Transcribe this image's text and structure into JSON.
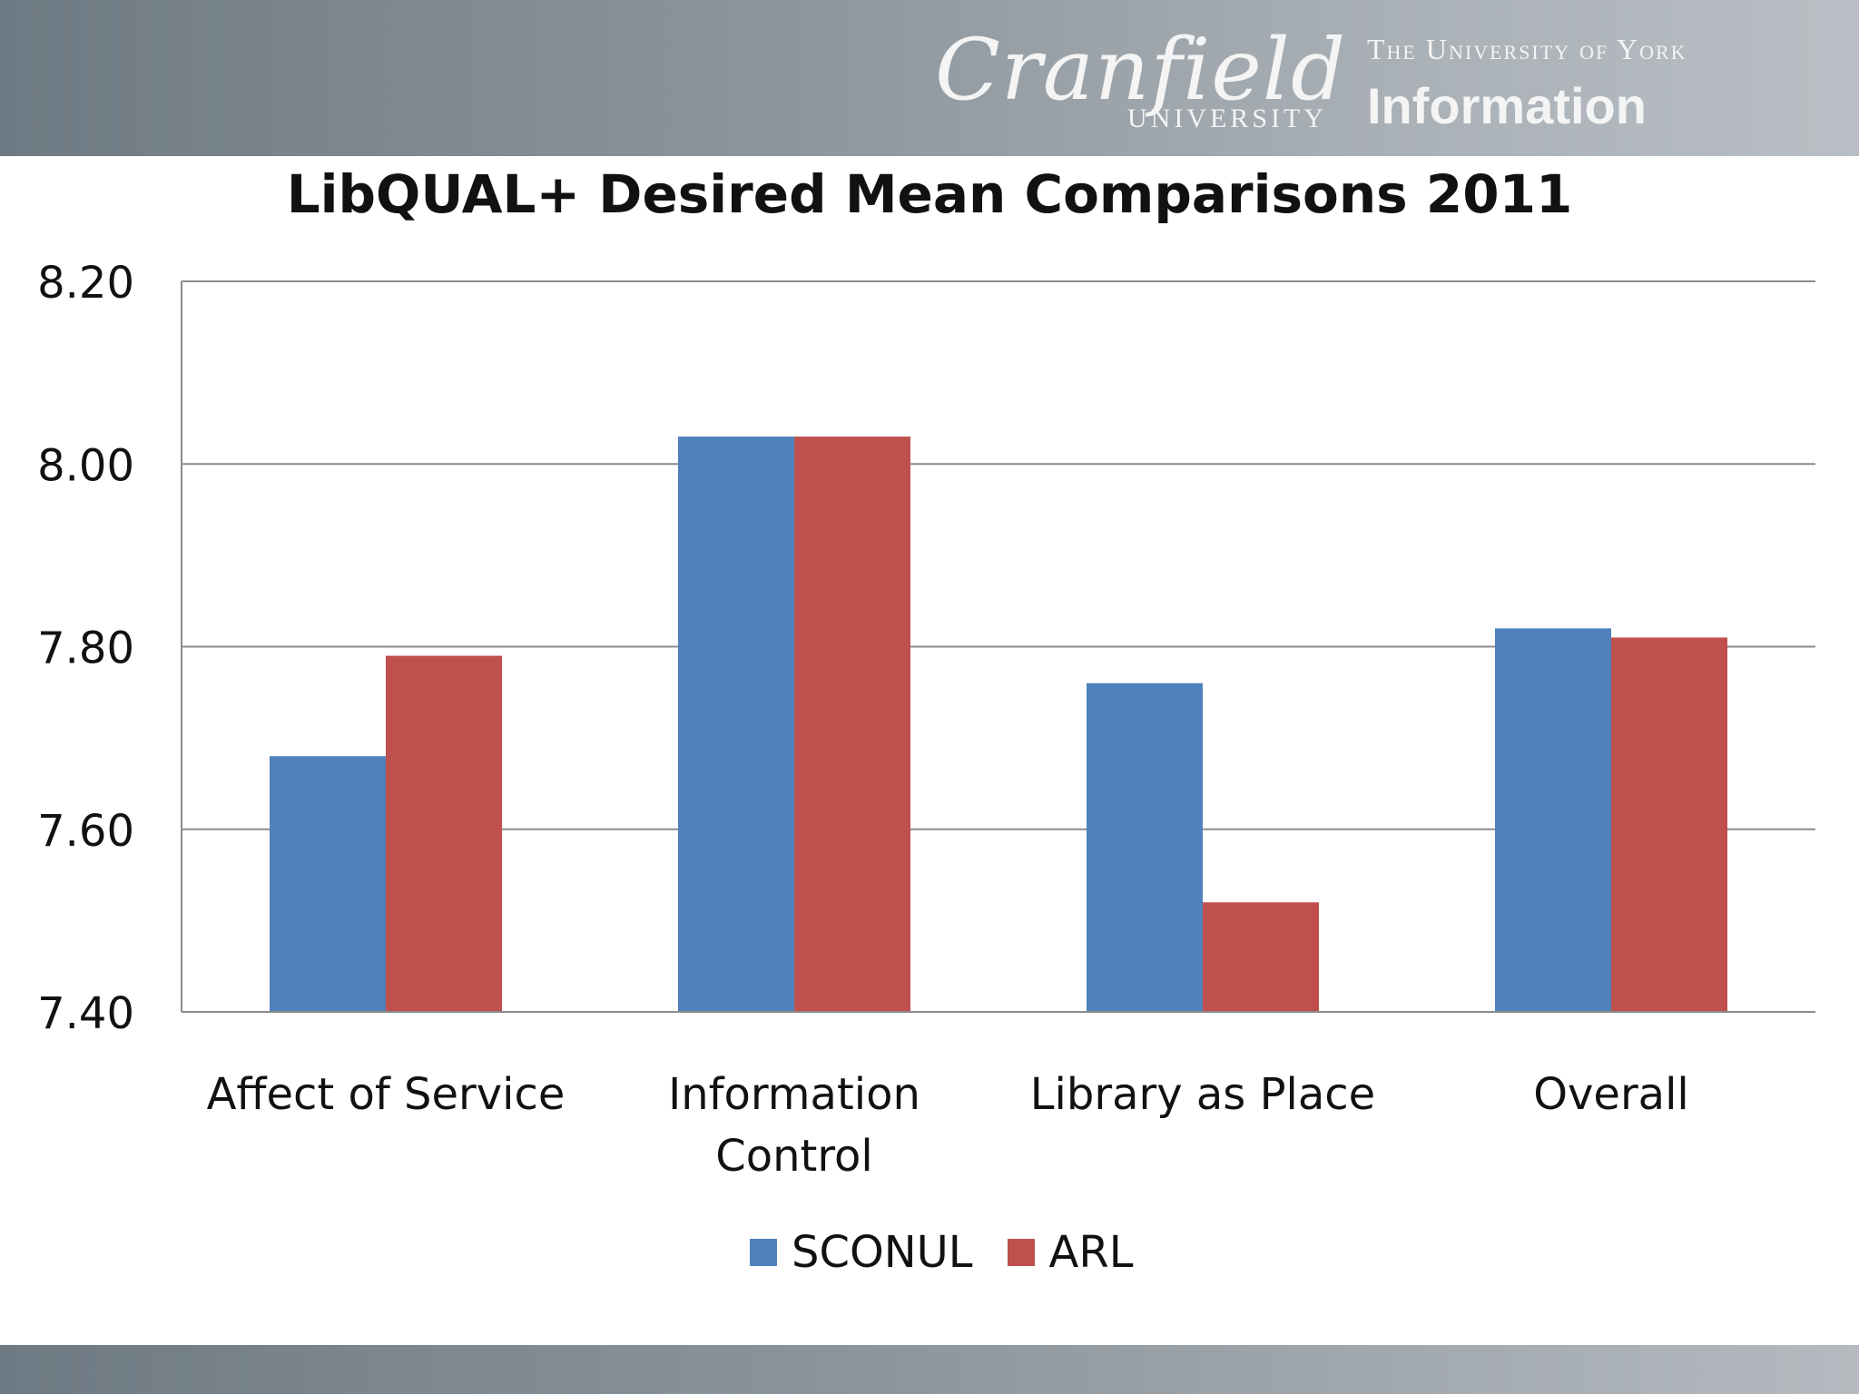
{
  "header": {
    "cranfield_logo": "Cranfield",
    "cranfield_sub": "UNIVERSITY",
    "york_line": "The University of York",
    "york_info": "Information"
  },
  "chart_data": {
    "type": "bar",
    "title": "LibQUAL+ Desired Mean Comparisons 2011",
    "categories": [
      "Affect of Service",
      "Information Control",
      "Library as Place",
      "Overall"
    ],
    "category_lines": [
      [
        "Affect of Service"
      ],
      [
        "Information",
        "Control"
      ],
      [
        "Library as Place"
      ],
      [
        "Overall"
      ]
    ],
    "series": [
      {
        "name": "SCONUL",
        "values": [
          7.68,
          8.03,
          7.76,
          7.82
        ],
        "color": "#4f81bd"
      },
      {
        "name": "ARL",
        "values": [
          7.79,
          8.03,
          7.52,
          7.81
        ],
        "color": "#c0504d"
      }
    ],
    "ylim": [
      7.4,
      8.2
    ],
    "yticks": [
      "7.40",
      "7.60",
      "7.80",
      "8.00",
      "8.20"
    ],
    "grid": true,
    "legend_position": "bottom",
    "xlabel": "",
    "ylabel": ""
  }
}
